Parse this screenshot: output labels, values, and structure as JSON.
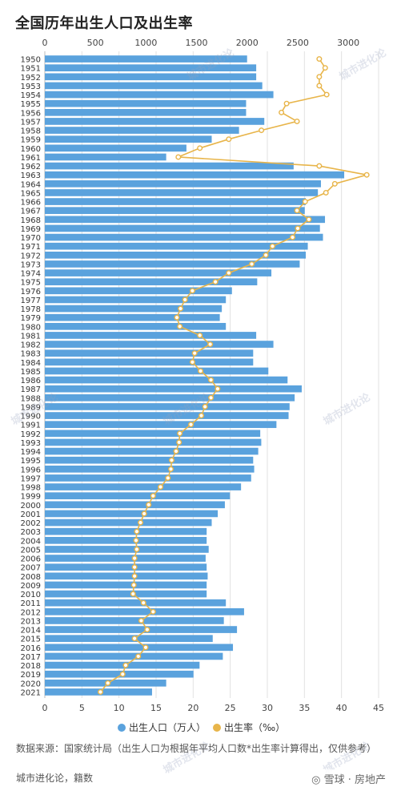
{
  "chart_data": {
    "type": "bar+line",
    "title": "全国历年出生人口及出生率",
    "years": [
      "1950",
      "1951",
      "1952",
      "1953",
      "1954",
      "1955",
      "1956",
      "1957",
      "1958",
      "1959",
      "1960",
      "1961",
      "1962",
      "1963",
      "1964",
      "1965",
      "1966",
      "1967",
      "1968",
      "1969",
      "1970",
      "1971",
      "1972",
      "1973",
      "1974",
      "1975",
      "1976",
      "1977",
      "1978",
      "1979",
      "1980",
      "1981",
      "1982",
      "1983",
      "1984",
      "1985",
      "1986",
      "1987",
      "1988",
      "1989",
      "1990",
      "1991",
      "1992",
      "1993",
      "1994",
      "1995",
      "1996",
      "1997",
      "1998",
      "1999",
      "2000",
      "2001",
      "2002",
      "2003",
      "2004",
      "2005",
      "2006",
      "2007",
      "2008",
      "2009",
      "2010",
      "2011",
      "2012",
      "2013",
      "2014",
      "2015",
      "2016",
      "2017",
      "2018",
      "2019",
      "2020",
      "2021"
    ],
    "series": [
      {
        "name": "出生人口（万人）",
        "axis": "top",
        "color": "#5aa2dd",
        "values": [
          2000,
          2090,
          2090,
          2150,
          2260,
          1990,
          1990,
          2170,
          1920,
          1650,
          1400,
          1200,
          2460,
          2960,
          2730,
          2700,
          2580,
          2570,
          2770,
          2720,
          2750,
          2600,
          2580,
          2520,
          2240,
          2100,
          1850,
          1790,
          1750,
          1730,
          1790,
          2090,
          2260,
          2060,
          2060,
          2210,
          2400,
          2540,
          2470,
          2420,
          2410,
          2290,
          2130,
          2140,
          2110,
          2060,
          2070,
          2040,
          1940,
          1830,
          1780,
          1710,
          1650,
          1600,
          1600,
          1620,
          1590,
          1600,
          1610,
          1600,
          1600,
          1790,
          1970,
          1770,
          1900,
          1660,
          1860,
          1760,
          1530,
          1470,
          1200,
          1060
        ],
        "xlim": [
          0,
          3300
        ],
        "ticks": [
          0,
          500,
          1000,
          1500,
          2000,
          2500,
          3000
        ]
      },
      {
        "name": "出生率（‰）",
        "axis": "bottom",
        "color": "#e8b54a",
        "values": [
          37.0,
          37.8,
          37.0,
          37.0,
          38.0,
          32.6,
          31.9,
          34.0,
          29.2,
          24.8,
          20.9,
          18.0,
          37.0,
          43.4,
          39.1,
          37.9,
          35.1,
          34.0,
          35.6,
          34.1,
          33.4,
          30.7,
          29.8,
          27.9,
          24.8,
          23.0,
          19.9,
          18.9,
          18.3,
          17.8,
          18.2,
          20.9,
          22.3,
          20.2,
          19.9,
          21.0,
          22.4,
          23.3,
          22.4,
          21.6,
          21.1,
          19.7,
          18.2,
          18.1,
          17.7,
          17.1,
          17.0,
          16.6,
          15.6,
          14.6,
          14.0,
          13.4,
          12.9,
          12.4,
          12.3,
          12.4,
          12.1,
          12.1,
          12.1,
          12.0,
          11.9,
          13.3,
          14.6,
          13.0,
          13.8,
          12.1,
          13.6,
          12.6,
          10.9,
          10.5,
          8.5,
          7.5
        ],
        "xlim": [
          0,
          45
        ],
        "ticks": [
          0,
          5,
          10,
          15,
          20,
          25,
          30,
          35,
          40,
          45
        ]
      }
    ],
    "legend_position": "bottom",
    "grid": "vertical"
  },
  "source_note": "数据来源：国家统计局（出生人口为根据年平均人口数*出生率计算得出，仅供参考）",
  "credit": "城市进化论，籍数",
  "watermark_brand": "◎ 雪球 · 房地产",
  "watermark_text": "城市进化论"
}
